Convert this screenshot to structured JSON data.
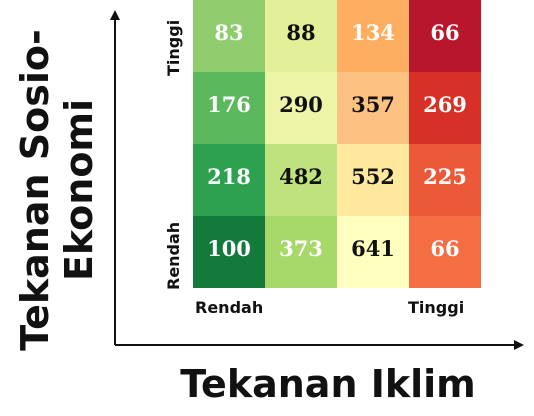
{
  "chart_data": {
    "type": "heatmap",
    "title": "",
    "xlabel": "Tekanan Iklim",
    "ylabel": "Tekanan Sosio-Ekonomi",
    "ylabel_lines": [
      "Tekanan Sosio-",
      "Ekonomi"
    ],
    "x_tick_labels": {
      "low": "Rendah",
      "high": "Tinggi"
    },
    "y_tick_labels": {
      "low": "Rendah",
      "high": "Tinggi"
    },
    "rows_top_to_bottom": [
      [
        83,
        88,
        134,
        66
      ],
      [
        176,
        290,
        357,
        269
      ],
      [
        218,
        482,
        552,
        225
      ],
      [
        100,
        373,
        641,
        66
      ]
    ],
    "cell_colors_top_to_bottom": [
      [
        "#8fcc6e",
        "#e3ef99",
        "#fdae61",
        "#b8162c"
      ],
      [
        "#5cb85c",
        "#eef4a8",
        "#fdc281",
        "#d73027"
      ],
      [
        "#2ea150",
        "#bfe17e",
        "#ffe99e",
        "#ec5939"
      ],
      [
        "#137a3c",
        "#a6d96a",
        "#ffffbf",
        "#f46d43"
      ]
    ],
    "text_colors_top_to_bottom": [
      [
        "#ffffff",
        "#111111",
        "#ffffff",
        "#ffffff"
      ],
      [
        "#ffffff",
        "#111111",
        "#111111",
        "#ffffff"
      ],
      [
        "#ffffff",
        "#111111",
        "#111111",
        "#ffffff"
      ],
      [
        "#ffffff",
        "#ffffff",
        "#111111",
        "#ffffff"
      ]
    ],
    "legend": "none",
    "grid": false
  }
}
